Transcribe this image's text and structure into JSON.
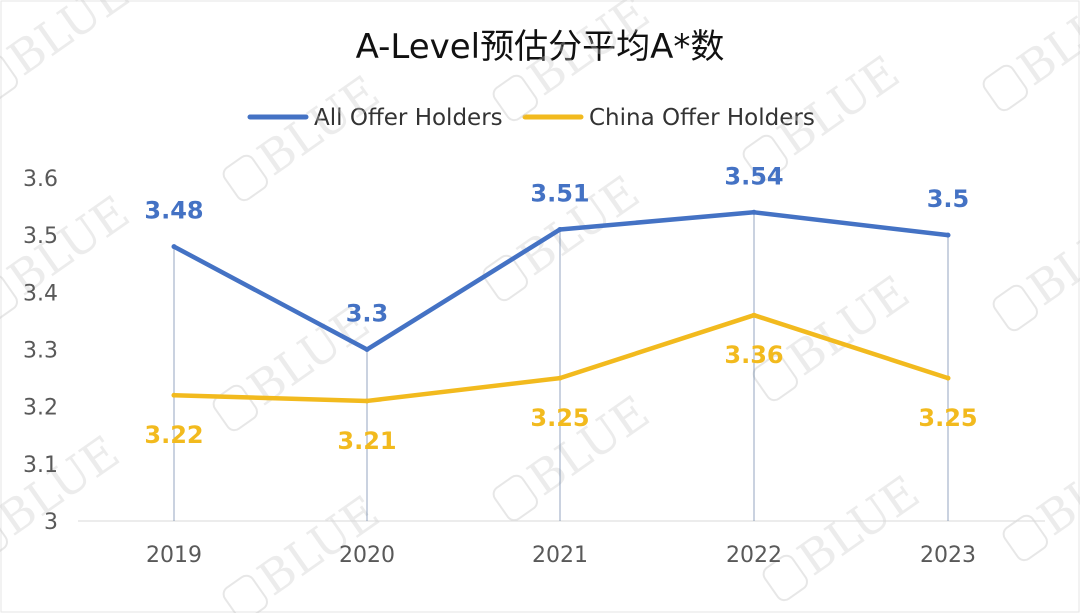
{
  "chart_data": {
    "type": "line",
    "title": "A-Level预估分平均A*数",
    "categories": [
      "2019",
      "2020",
      "2021",
      "2022",
      "2023"
    ],
    "ylim": [
      3,
      3.6
    ],
    "yticks": [
      "3",
      "3.1",
      "3.2",
      "3.3",
      "3.4",
      "3.5",
      "3.6"
    ],
    "grid": false,
    "legend_position": "top",
    "series": [
      {
        "name": "All Offer Holders",
        "color": "#4472C4",
        "values": [
          3.48,
          3.3,
          3.51,
          3.54,
          3.5
        ],
        "labels": [
          "3.48",
          "3.3",
          "3.51",
          "3.54",
          "3.5"
        ]
      },
      {
        "name": "China Offer Holders",
        "color": "#F2BA1E",
        "values": [
          3.22,
          3.21,
          3.25,
          3.36,
          3.25
        ],
        "labels": [
          "3.22",
          "3.21",
          "3.25",
          "3.36",
          "3.25"
        ]
      }
    ]
  },
  "watermark": {
    "text": "BLUE"
  }
}
